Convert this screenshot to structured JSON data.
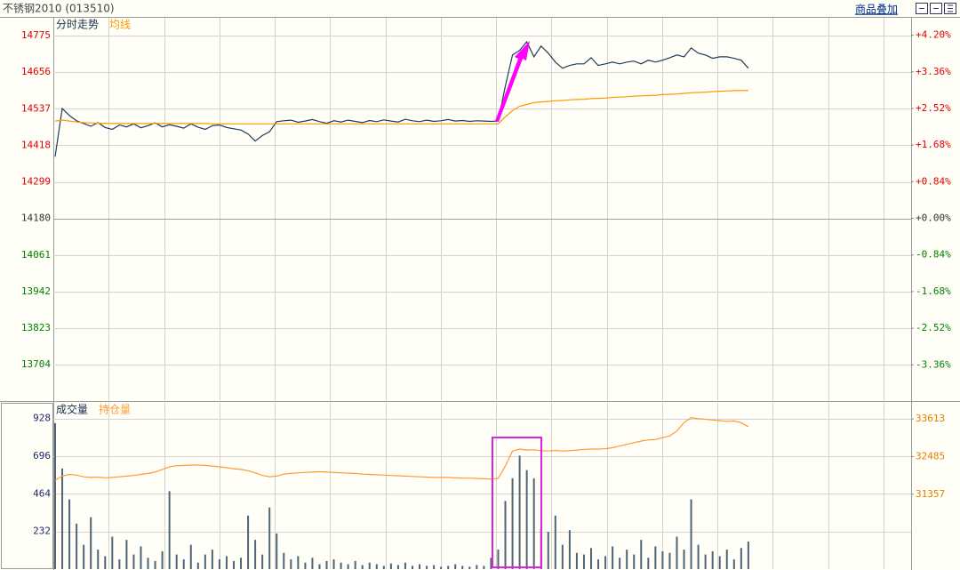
{
  "header": {
    "title": "不锈钢2010 (013510)",
    "link": "商品叠加"
  },
  "chart_data": [
    {
      "type": "line",
      "grid": true,
      "ylim": [
        13589,
        14833
      ],
      "yticks": [
        14775,
        14656,
        14537,
        14418,
        14299,
        14180,
        14061,
        13942,
        13823,
        13704
      ],
      "y2lim": [
        -4.17,
        4.6
      ],
      "y2ticks": [
        {
          "value": 4.2,
          "label": "+4.20%"
        },
        {
          "value": 3.36,
          "label": "+3.36%"
        },
        {
          "value": 2.52,
          "label": "+2.52%"
        },
        {
          "value": 1.68,
          "label": "+1.68%"
        },
        {
          "value": 0.84,
          "label": "+0.84%"
        },
        {
          "value": 0,
          "label": "+0.00%"
        },
        {
          "value": -0.84,
          "label": "-0.84%"
        },
        {
          "value": -1.68,
          "label": "-1.68%"
        },
        {
          "value": -2.52,
          "label": "-2.52%"
        },
        {
          "value": -3.36,
          "label": "-3.36%"
        }
      ],
      "series": [
        {
          "name": "分时走势",
          "color": "#1f3b5a",
          "type": "line",
          "values": [
            14381,
            14538,
            14515,
            14498,
            14489,
            14480,
            14492,
            14476,
            14470,
            14484,
            14478,
            14488,
            14475,
            14482,
            14491,
            14478,
            14485,
            14480,
            14474,
            14488,
            14477,
            14470,
            14482,
            14484,
            14476,
            14472,
            14468,
            14455,
            14432,
            14450,
            14462,
            14495,
            14498,
            14500,
            14493,
            14497,
            14502,
            14495,
            14490,
            14498,
            14494,
            14500,
            14496,
            14492,
            14499,
            14495,
            14501,
            14497,
            14494,
            14503,
            14498,
            14495,
            14500,
            14496,
            14498,
            14502,
            14497,
            14499,
            14496,
            14498,
            14497,
            14496,
            14497,
            14611,
            14712,
            14727,
            14755,
            14706,
            14741,
            14718,
            14689,
            14669,
            14678,
            14683,
            14683,
            14703,
            14678,
            14683,
            14689,
            14683,
            14689,
            14692,
            14683,
            14695,
            14689,
            14695,
            14703,
            14712,
            14706,
            14735,
            14718,
            14712,
            14701,
            14706,
            14706,
            14701,
            14695,
            14669
          ]
        },
        {
          "name": "均线",
          "color": "#ff9900",
          "type": "line",
          "values": [
            14497,
            14500,
            14497,
            14494,
            14492,
            14491,
            14490,
            14490,
            14489,
            14489,
            14489,
            14489,
            14489,
            14489,
            14489,
            14489,
            14489,
            14489,
            14489,
            14489,
            14489,
            14489,
            14488,
            14488,
            14488,
            14488,
            14488,
            14488,
            14488,
            14488,
            14488,
            14488,
            14488,
            14488,
            14488,
            14488,
            14488,
            14488,
            14488,
            14488,
            14488,
            14488,
            14488,
            14488,
            14488,
            14488,
            14488,
            14488,
            14488,
            14488,
            14488,
            14488,
            14488,
            14488,
            14488,
            14488,
            14488,
            14488,
            14488,
            14488,
            14488,
            14488,
            14488,
            14511,
            14531,
            14545,
            14551,
            14557,
            14559,
            14561,
            14563,
            14564,
            14566,
            14567,
            14568,
            14570,
            14571,
            14572,
            14574,
            14575,
            14576,
            14578,
            14579,
            14580,
            14581,
            14583,
            14584,
            14585,
            14587,
            14589,
            14590,
            14591,
            14593,
            14594,
            14595,
            14596,
            14596,
            14597
          ]
        }
      ]
    },
    {
      "type": "bar",
      "grid": true,
      "ylim": [
        0,
        1025
      ],
      "yticks": [
        928,
        696,
        464,
        232
      ],
      "y2lim": [
        29117,
        34093
      ],
      "y2ticks": [
        33613,
        32485,
        31357
      ],
      "series": [
        {
          "name": "成交量",
          "color": "#4f6477",
          "type": "bar",
          "values": [
            900,
            620,
            430,
            280,
            150,
            320,
            120,
            80,
            200,
            60,
            180,
            90,
            140,
            70,
            50,
            110,
            480,
            90,
            60,
            150,
            40,
            90,
            120,
            60,
            80,
            50,
            70,
            330,
            180,
            90,
            380,
            220,
            100,
            60,
            80,
            40,
            70,
            30,
            50,
            60,
            40,
            30,
            50,
            25,
            40,
            30,
            20,
            35,
            25,
            40,
            20,
            30,
            20,
            25,
            15,
            20,
            30,
            20,
            15,
            25,
            20,
            70,
            120,
            420,
            560,
            700,
            610,
            560,
            250,
            230,
            330,
            150,
            240,
            100,
            90,
            130,
            60,
            80,
            140,
            70,
            120,
            90,
            180,
            70,
            140,
            110,
            100,
            200,
            120,
            430,
            150,
            90,
            110,
            80,
            120,
            60,
            130,
            170
          ]
        },
        {
          "name": "持仓量",
          "color": "#ff9933",
          "type": "line",
          "axis": "y2",
          "values": [
            31773,
            31900,
            31950,
            31930,
            31880,
            31860,
            31870,
            31850,
            31860,
            31880,
            31900,
            31920,
            31950,
            31980,
            32020,
            32100,
            32180,
            32210,
            32220,
            32230,
            32230,
            32220,
            32200,
            32180,
            32150,
            32120,
            32100,
            32060,
            32000,
            31920,
            31880,
            31900,
            31960,
            31980,
            32000,
            32010,
            32020,
            32030,
            32020,
            32010,
            32000,
            31990,
            31980,
            31960,
            31950,
            31940,
            31930,
            31920,
            31910,
            31900,
            31890,
            31880,
            31870,
            31860,
            31860,
            31860,
            31850,
            31840,
            31840,
            31830,
            31820,
            31810,
            31830,
            32200,
            32650,
            32710,
            32680,
            32690,
            32660,
            32650,
            32670,
            32650,
            32660,
            32680,
            32700,
            32710,
            32710,
            32720,
            32750,
            32800,
            32850,
            32900,
            32950,
            32980,
            33000,
            33050,
            33100,
            33250,
            33500,
            33650,
            33620,
            33600,
            33580,
            33560,
            33540,
            33550,
            33500,
            33380
          ]
        }
      ]
    }
  ]
}
